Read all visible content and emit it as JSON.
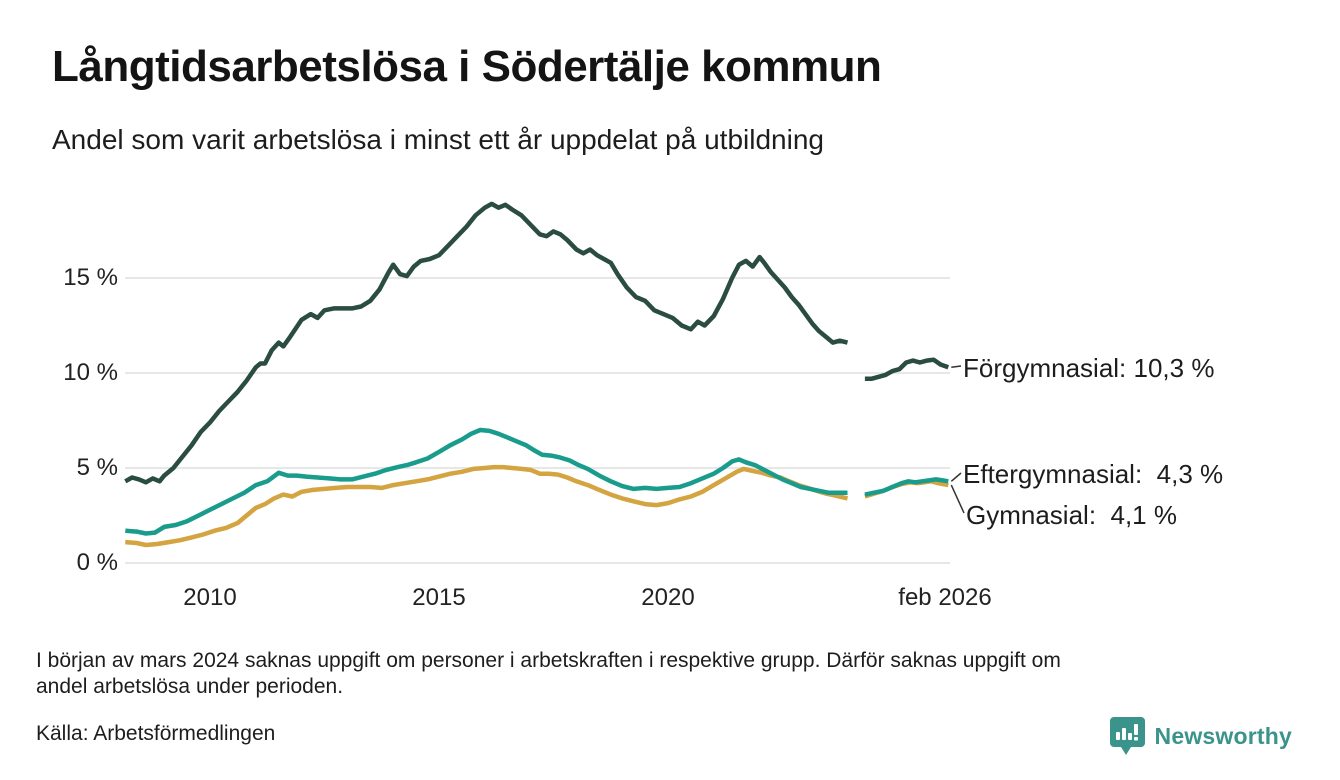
{
  "header": {
    "title": "Långtidsarbetslösa i Södertälje kommun",
    "subtitle": "Andel som varit arbetslösa i minst ett år uppdelat på utbildning"
  },
  "footer": {
    "note_line1": "I början av mars 2024 saknas uppgift om personer i arbetskraften i respektive grupp. Därför saknas uppgift om",
    "note_line2": "andel arbetslösa under perioden.",
    "source": "Källa: Arbetsförmedlingen",
    "brand": "Newsworthy"
  },
  "colors": {
    "forgymnasial": "#2a4c41",
    "eftergymnasial": "#1a9c8c",
    "gymnasial": "#d3a43f",
    "grid": "#e7e7e7",
    "connector": "#333333",
    "brand_teal": "#3a948b"
  },
  "chart_data": {
    "type": "line",
    "title": "Långtidsarbetslösa i Södertälje kommun",
    "subtitle": "Andel som varit arbetslösa i minst ett år uppdelat på utbildning",
    "unit": "%",
    "grid": "horizontal",
    "legend_position": "right-annotations",
    "gap_note": "Data saknas kring början av mars 2024",
    "x_axis": {
      "range": [
        2007.9,
        2026.3
      ],
      "ticks": [
        {
          "label": "2010",
          "year": 2010
        },
        {
          "label": "2015",
          "year": 2015
        },
        {
          "label": "2020",
          "year": 2020
        },
        {
          "label": "feb 2026",
          "year": 2026.05
        }
      ]
    },
    "y_axis": {
      "range": [
        0,
        19.6
      ],
      "ticks": [
        {
          "label": "0 %",
          "value": 0
        },
        {
          "label": "5 %",
          "value": 5
        },
        {
          "label": "10 %",
          "value": 10
        },
        {
          "label": "15 %",
          "value": 15
        }
      ]
    },
    "series": [
      {
        "id": "forgymnasial",
        "name": "Förgymnasial",
        "label": "Förgymnasial: 10,3 %",
        "end_value": "10,3 %",
        "color": "#2a4c41",
        "points": [
          [
            2008.15,
            4.3
          ],
          [
            2008.3,
            4.5
          ],
          [
            2008.45,
            4.4
          ],
          [
            2008.6,
            4.25
          ],
          [
            2008.75,
            4.45
          ],
          [
            2008.9,
            4.3
          ],
          [
            2009.0,
            4.6
          ],
          [
            2009.2,
            5.0
          ],
          [
            2009.4,
            5.6
          ],
          [
            2009.6,
            6.2
          ],
          [
            2009.8,
            6.9
          ],
          [
            2010.0,
            7.4
          ],
          [
            2010.2,
            8.0
          ],
          [
            2010.4,
            8.5
          ],
          [
            2010.6,
            9.0
          ],
          [
            2010.8,
            9.6
          ],
          [
            2011.0,
            10.3
          ],
          [
            2011.1,
            10.5
          ],
          [
            2011.2,
            10.5
          ],
          [
            2011.35,
            11.2
          ],
          [
            2011.5,
            11.6
          ],
          [
            2011.6,
            11.4
          ],
          [
            2011.75,
            11.9
          ],
          [
            2012.0,
            12.8
          ],
          [
            2012.2,
            13.1
          ],
          [
            2012.35,
            12.9
          ],
          [
            2012.5,
            13.3
          ],
          [
            2012.7,
            13.4
          ],
          [
            2012.9,
            13.4
          ],
          [
            2013.1,
            13.4
          ],
          [
            2013.3,
            13.5
          ],
          [
            2013.5,
            13.8
          ],
          [
            2013.7,
            14.4
          ],
          [
            2013.9,
            15.3
          ],
          [
            2014.0,
            15.7
          ],
          [
            2014.15,
            15.2
          ],
          [
            2014.3,
            15.1
          ],
          [
            2014.45,
            15.6
          ],
          [
            2014.6,
            15.9
          ],
          [
            2014.8,
            16.0
          ],
          [
            2015.0,
            16.2
          ],
          [
            2015.2,
            16.7
          ],
          [
            2015.4,
            17.2
          ],
          [
            2015.6,
            17.7
          ],
          [
            2015.8,
            18.3
          ],
          [
            2016.0,
            18.7
          ],
          [
            2016.15,
            18.9
          ],
          [
            2016.3,
            18.7
          ],
          [
            2016.45,
            18.85
          ],
          [
            2016.6,
            18.6
          ],
          [
            2016.8,
            18.3
          ],
          [
            2017.0,
            17.8
          ],
          [
            2017.2,
            17.3
          ],
          [
            2017.35,
            17.2
          ],
          [
            2017.5,
            17.45
          ],
          [
            2017.65,
            17.3
          ],
          [
            2017.8,
            17.0
          ],
          [
            2018.0,
            16.5
          ],
          [
            2018.15,
            16.3
          ],
          [
            2018.3,
            16.5
          ],
          [
            2018.45,
            16.2
          ],
          [
            2018.6,
            16.0
          ],
          [
            2018.75,
            15.8
          ],
          [
            2018.9,
            15.2
          ],
          [
            2019.1,
            14.5
          ],
          [
            2019.3,
            14.0
          ],
          [
            2019.5,
            13.8
          ],
          [
            2019.7,
            13.3
          ],
          [
            2019.9,
            13.1
          ],
          [
            2020.1,
            12.9
          ],
          [
            2020.3,
            12.5
          ],
          [
            2020.5,
            12.3
          ],
          [
            2020.65,
            12.7
          ],
          [
            2020.8,
            12.5
          ],
          [
            2021.0,
            13.0
          ],
          [
            2021.2,
            13.9
          ],
          [
            2021.4,
            15.0
          ],
          [
            2021.55,
            15.7
          ],
          [
            2021.7,
            15.9
          ],
          [
            2021.85,
            15.6
          ],
          [
            2022.0,
            16.1
          ],
          [
            2022.1,
            15.8
          ],
          [
            2022.25,
            15.3
          ],
          [
            2022.4,
            14.9
          ],
          [
            2022.55,
            14.5
          ],
          [
            2022.7,
            14.0
          ],
          [
            2022.85,
            13.6
          ],
          [
            2023.0,
            13.1
          ],
          [
            2023.15,
            12.6
          ],
          [
            2023.3,
            12.2
          ],
          [
            2023.45,
            11.9
          ],
          [
            2023.6,
            11.6
          ],
          [
            2023.75,
            11.7
          ],
          [
            2023.92,
            11.6
          ],
          null,
          [
            2024.3,
            9.7
          ],
          [
            2024.45,
            9.7
          ],
          [
            2024.6,
            9.8
          ],
          [
            2024.75,
            9.9
          ],
          [
            2024.9,
            10.1
          ],
          [
            2025.05,
            10.2
          ],
          [
            2025.2,
            10.55
          ],
          [
            2025.35,
            10.65
          ],
          [
            2025.5,
            10.55
          ],
          [
            2025.65,
            10.65
          ],
          [
            2025.8,
            10.7
          ],
          [
            2025.95,
            10.45
          ],
          [
            2026.12,
            10.3
          ]
        ]
      },
      {
        "id": "eftergymnasial",
        "name": "Eftergymnasial",
        "label": "Eftergymnasial:  4,3 %",
        "end_value": "4,3 %",
        "color": "#1a9c8c",
        "points": [
          [
            2008.15,
            1.7
          ],
          [
            2008.4,
            1.65
          ],
          [
            2008.6,
            1.55
          ],
          [
            2008.8,
            1.6
          ],
          [
            2009.0,
            1.9
          ],
          [
            2009.25,
            2.0
          ],
          [
            2009.5,
            2.2
          ],
          [
            2009.75,
            2.5
          ],
          [
            2010.0,
            2.8
          ],
          [
            2010.25,
            3.1
          ],
          [
            2010.5,
            3.4
          ],
          [
            2010.75,
            3.7
          ],
          [
            2011.0,
            4.1
          ],
          [
            2011.25,
            4.3
          ],
          [
            2011.5,
            4.75
          ],
          [
            2011.7,
            4.6
          ],
          [
            2011.9,
            4.6
          ],
          [
            2012.1,
            4.55
          ],
          [
            2012.35,
            4.5
          ],
          [
            2012.6,
            4.45
          ],
          [
            2012.85,
            4.4
          ],
          [
            2013.1,
            4.4
          ],
          [
            2013.35,
            4.55
          ],
          [
            2013.6,
            4.7
          ],
          [
            2013.85,
            4.9
          ],
          [
            2014.1,
            5.05
          ],
          [
            2014.3,
            5.15
          ],
          [
            2014.5,
            5.3
          ],
          [
            2014.75,
            5.5
          ],
          [
            2015.0,
            5.85
          ],
          [
            2015.25,
            6.2
          ],
          [
            2015.5,
            6.5
          ],
          [
            2015.7,
            6.8
          ],
          [
            2015.9,
            7.0
          ],
          [
            2016.1,
            6.95
          ],
          [
            2016.3,
            6.8
          ],
          [
            2016.5,
            6.6
          ],
          [
            2016.7,
            6.4
          ],
          [
            2016.9,
            6.2
          ],
          [
            2017.1,
            5.9
          ],
          [
            2017.25,
            5.7
          ],
          [
            2017.45,
            5.65
          ],
          [
            2017.65,
            5.55
          ],
          [
            2017.85,
            5.4
          ],
          [
            2018.05,
            5.15
          ],
          [
            2018.25,
            4.95
          ],
          [
            2018.5,
            4.6
          ],
          [
            2018.75,
            4.3
          ],
          [
            2019.0,
            4.05
          ],
          [
            2019.25,
            3.9
          ],
          [
            2019.5,
            3.95
          ],
          [
            2019.75,
            3.9
          ],
          [
            2020.0,
            3.95
          ],
          [
            2020.25,
            4.0
          ],
          [
            2020.5,
            4.2
          ],
          [
            2020.75,
            4.45
          ],
          [
            2021.0,
            4.7
          ],
          [
            2021.2,
            5.0
          ],
          [
            2021.4,
            5.35
          ],
          [
            2021.55,
            5.45
          ],
          [
            2021.7,
            5.3
          ],
          [
            2021.9,
            5.15
          ],
          [
            2022.1,
            4.9
          ],
          [
            2022.3,
            4.65
          ],
          [
            2022.5,
            4.4
          ],
          [
            2022.7,
            4.2
          ],
          [
            2022.9,
            4.0
          ],
          [
            2023.1,
            3.9
          ],
          [
            2023.3,
            3.8
          ],
          [
            2023.5,
            3.7
          ],
          [
            2023.7,
            3.7
          ],
          [
            2023.92,
            3.7
          ],
          null,
          [
            2024.3,
            3.6
          ],
          [
            2024.5,
            3.7
          ],
          [
            2024.7,
            3.8
          ],
          [
            2024.9,
            4.0
          ],
          [
            2025.1,
            4.2
          ],
          [
            2025.25,
            4.3
          ],
          [
            2025.4,
            4.25
          ],
          [
            2025.55,
            4.3
          ],
          [
            2025.7,
            4.35
          ],
          [
            2025.85,
            4.4
          ],
          [
            2026.0,
            4.35
          ],
          [
            2026.12,
            4.3
          ]
        ]
      },
      {
        "id": "gymnasial",
        "name": "Gymnasial",
        "label": "Gymnasial:  4,1 %",
        "end_value": "4,1 %",
        "color": "#d3a43f",
        "points": [
          [
            2008.15,
            1.1
          ],
          [
            2008.4,
            1.05
          ],
          [
            2008.6,
            0.95
          ],
          [
            2008.85,
            1.0
          ],
          [
            2009.1,
            1.1
          ],
          [
            2009.35,
            1.2
          ],
          [
            2009.6,
            1.35
          ],
          [
            2009.85,
            1.5
          ],
          [
            2010.1,
            1.7
          ],
          [
            2010.35,
            1.85
          ],
          [
            2010.6,
            2.1
          ],
          [
            2010.8,
            2.5
          ],
          [
            2011.0,
            2.9
          ],
          [
            2011.2,
            3.1
          ],
          [
            2011.4,
            3.4
          ],
          [
            2011.6,
            3.6
          ],
          [
            2011.8,
            3.5
          ],
          [
            2012.0,
            3.75
          ],
          [
            2012.25,
            3.85
          ],
          [
            2012.5,
            3.9
          ],
          [
            2012.75,
            3.95
          ],
          [
            2013.0,
            4.0
          ],
          [
            2013.25,
            4.0
          ],
          [
            2013.5,
            4.0
          ],
          [
            2013.75,
            3.95
          ],
          [
            2014.0,
            4.1
          ],
          [
            2014.25,
            4.2
          ],
          [
            2014.5,
            4.3
          ],
          [
            2014.75,
            4.4
          ],
          [
            2015.0,
            4.55
          ],
          [
            2015.25,
            4.7
          ],
          [
            2015.5,
            4.8
          ],
          [
            2015.75,
            4.95
          ],
          [
            2016.0,
            5.0
          ],
          [
            2016.2,
            5.05
          ],
          [
            2016.4,
            5.05
          ],
          [
            2016.6,
            5.0
          ],
          [
            2016.8,
            4.95
          ],
          [
            2017.0,
            4.9
          ],
          [
            2017.2,
            4.7
          ],
          [
            2017.4,
            4.7
          ],
          [
            2017.6,
            4.65
          ],
          [
            2017.8,
            4.5
          ],
          [
            2018.0,
            4.3
          ],
          [
            2018.25,
            4.1
          ],
          [
            2018.5,
            3.85
          ],
          [
            2018.75,
            3.6
          ],
          [
            2019.0,
            3.4
          ],
          [
            2019.25,
            3.25
          ],
          [
            2019.5,
            3.1
          ],
          [
            2019.75,
            3.05
          ],
          [
            2020.0,
            3.15
          ],
          [
            2020.25,
            3.35
          ],
          [
            2020.5,
            3.5
          ],
          [
            2020.75,
            3.75
          ],
          [
            2021.0,
            4.1
          ],
          [
            2021.25,
            4.45
          ],
          [
            2021.5,
            4.8
          ],
          [
            2021.65,
            4.95
          ],
          [
            2021.85,
            4.85
          ],
          [
            2022.05,
            4.75
          ],
          [
            2022.25,
            4.6
          ],
          [
            2022.45,
            4.5
          ],
          [
            2022.65,
            4.3
          ],
          [
            2022.85,
            4.1
          ],
          [
            2023.05,
            3.95
          ],
          [
            2023.25,
            3.8
          ],
          [
            2023.45,
            3.65
          ],
          [
            2023.65,
            3.55
          ],
          [
            2023.92,
            3.4
          ],
          null,
          [
            2024.3,
            3.5
          ],
          [
            2024.5,
            3.65
          ],
          [
            2024.7,
            3.8
          ],
          [
            2024.9,
            4.0
          ],
          [
            2025.1,
            4.15
          ],
          [
            2025.3,
            4.25
          ],
          [
            2025.45,
            4.2
          ],
          [
            2025.6,
            4.25
          ],
          [
            2025.75,
            4.3
          ],
          [
            2025.9,
            4.2
          ],
          [
            2026.12,
            4.1
          ]
        ]
      }
    ]
  }
}
